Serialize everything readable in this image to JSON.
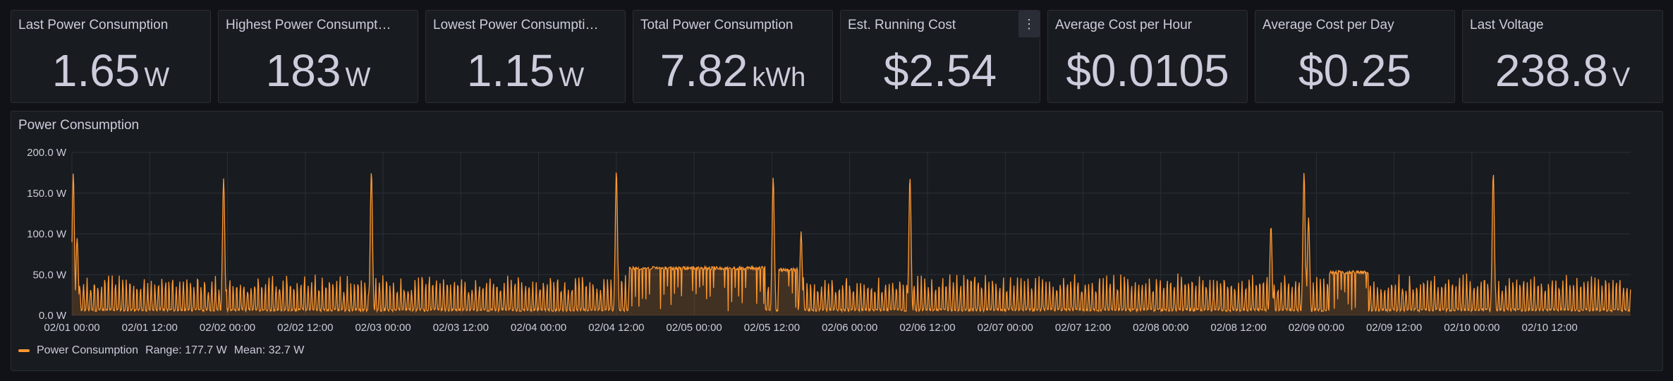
{
  "stats": [
    {
      "title": "Last Power Consumption",
      "value": "1.65",
      "unit": "W"
    },
    {
      "title": "Highest Power Consumption",
      "value": "183",
      "unit": "W"
    },
    {
      "title": "Lowest Power Consumption",
      "value": "1.15",
      "unit": "W"
    },
    {
      "title": "Total Power Consumption",
      "value": "7.82",
      "unit": "kWh"
    },
    {
      "title": "Est. Running Cost",
      "value": "$2.54",
      "unit": ""
    },
    {
      "title": "Average Cost per Hour",
      "value": "$0.0105",
      "unit": ""
    },
    {
      "title": "Average Cost per Day",
      "value": "$0.25",
      "unit": ""
    },
    {
      "title": "Last Voltage",
      "value": "238.8",
      "unit": "V"
    }
  ],
  "panel_menu_icon": "kebab-menu-icon",
  "chart_panel": {
    "title": "Power Consumption",
    "legend": {
      "series_name": "Power Consumption",
      "range": "Range: 177.7 W",
      "mean": "Mean: 32.7 W"
    }
  },
  "chart_data": {
    "type": "area",
    "title": "Power Consumption",
    "xlabel": "",
    "ylabel": "",
    "color": "#ff9830",
    "ylim": [
      0,
      200
    ],
    "y_ticks": [
      "0.0 W",
      "50.0 W",
      "100.0 W",
      "150.0 W",
      "200.0 W"
    ],
    "x_ticks": [
      "02/01 00:00",
      "02/01 12:00",
      "02/02 00:00",
      "02/02 12:00",
      "02/03 00:00",
      "02/03 12:00",
      "02/04 00:00",
      "02/04 12:00",
      "02/05 00:00",
      "02/05 12:00",
      "02/06 00:00",
      "02/06 12:00",
      "02/07 00:00",
      "02/07 12:00",
      "02/08 00:00",
      "02/08 12:00",
      "02/09 00:00",
      "02/09 12:00",
      "02/10 00:00",
      "02/10 12:00"
    ],
    "x_range_hours": [
      0,
      240.5
    ],
    "baseline": {
      "low_w": 5,
      "high_w": 52,
      "cycle_hours": 0.55
    },
    "series": [
      {
        "name": "Power Consumption",
        "peaks": [
          {
            "x_hours": 0.2,
            "y_w": 175
          },
          {
            "x_hours": 0.8,
            "y_w": 95
          },
          {
            "x_hours": 23.4,
            "y_w": 168
          },
          {
            "x_hours": 46.2,
            "y_w": 177
          },
          {
            "x_hours": 84.0,
            "y_w": 178
          },
          {
            "x_hours": 108.2,
            "y_w": 170
          },
          {
            "x_hours": 112.5,
            "y_w": 103
          },
          {
            "x_hours": 129.3,
            "y_w": 170
          },
          {
            "x_hours": 185.0,
            "y_w": 110
          },
          {
            "x_hours": 190.1,
            "y_w": 176
          },
          {
            "x_hours": 190.8,
            "y_w": 120
          },
          {
            "x_hours": 219.3,
            "y_w": 175
          }
        ],
        "plateaus": [
          {
            "x_start_hours": 86,
            "x_end_hours": 107,
            "y_w": 60
          },
          {
            "x_start_hours": 109,
            "x_end_hours": 112,
            "y_w": 58
          },
          {
            "x_start_hours": 194,
            "x_end_hours": 200,
            "y_w": 55
          }
        ]
      }
    ]
  }
}
